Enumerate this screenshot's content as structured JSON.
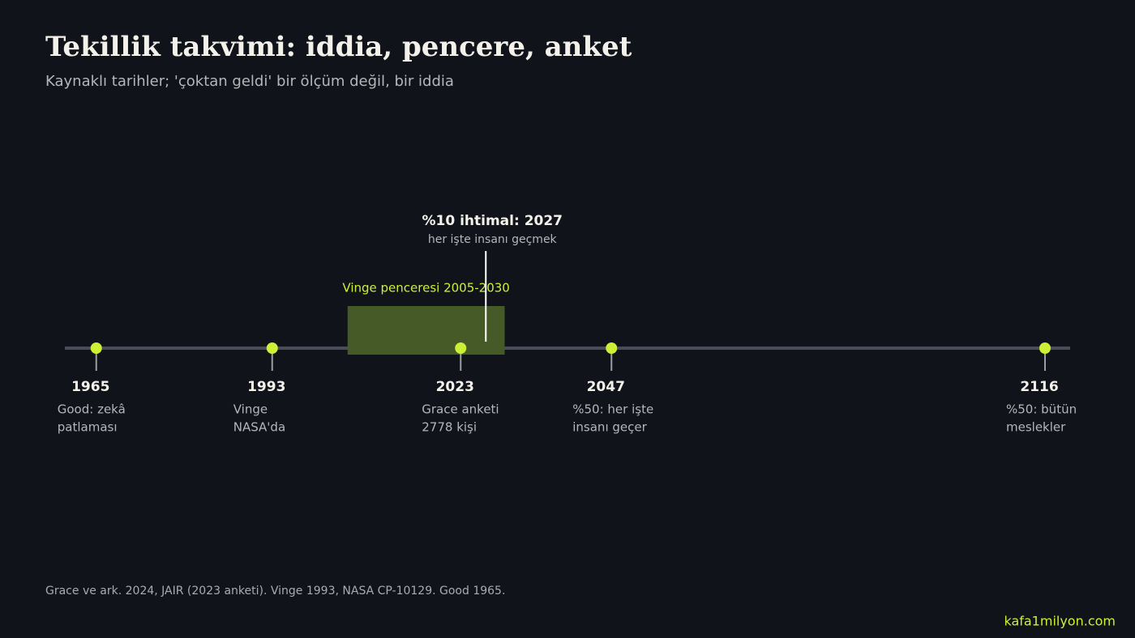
{
  "chart_data": {
    "type": "timeline",
    "title": "Tekillik takvimi: iddia, pencere, anket",
    "subtitle": "Kaynaklı tarihler; 'çoktan geldi' bir ölçüm değil, bir iddia",
    "xlim": [
      1960,
      2120
    ],
    "color": "#cdf036",
    "events": [
      {
        "year": 1965,
        "lines": [
          "Good: zekâ",
          "patlaması"
        ]
      },
      {
        "year": 1993,
        "lines": [
          "Vinge",
          "NASA'da"
        ]
      },
      {
        "year": 2023,
        "lines": [
          "Grace anketi",
          "2778 kişi"
        ]
      },
      {
        "year": 2047,
        "lines": [
          "%50: her işte",
          "insanı geçer"
        ]
      },
      {
        "year": 2116,
        "lines": [
          "%50: bütün",
          "meslekler"
        ]
      }
    ],
    "window": {
      "label": "Vinge penceresi 2005-2030",
      "start": 2005,
      "end": 2030,
      "color": "#465a28"
    },
    "marker": {
      "value": 2027,
      "label": "%10 ihtimal: 2027",
      "sublabel": "her işte insanı geçmek"
    },
    "source": "Grace ve ark. 2024, JAIR (2023 anketi). Vinge 1993, NASA CP-10129. Good 1965.",
    "brand": "kafa1milyon.com"
  }
}
